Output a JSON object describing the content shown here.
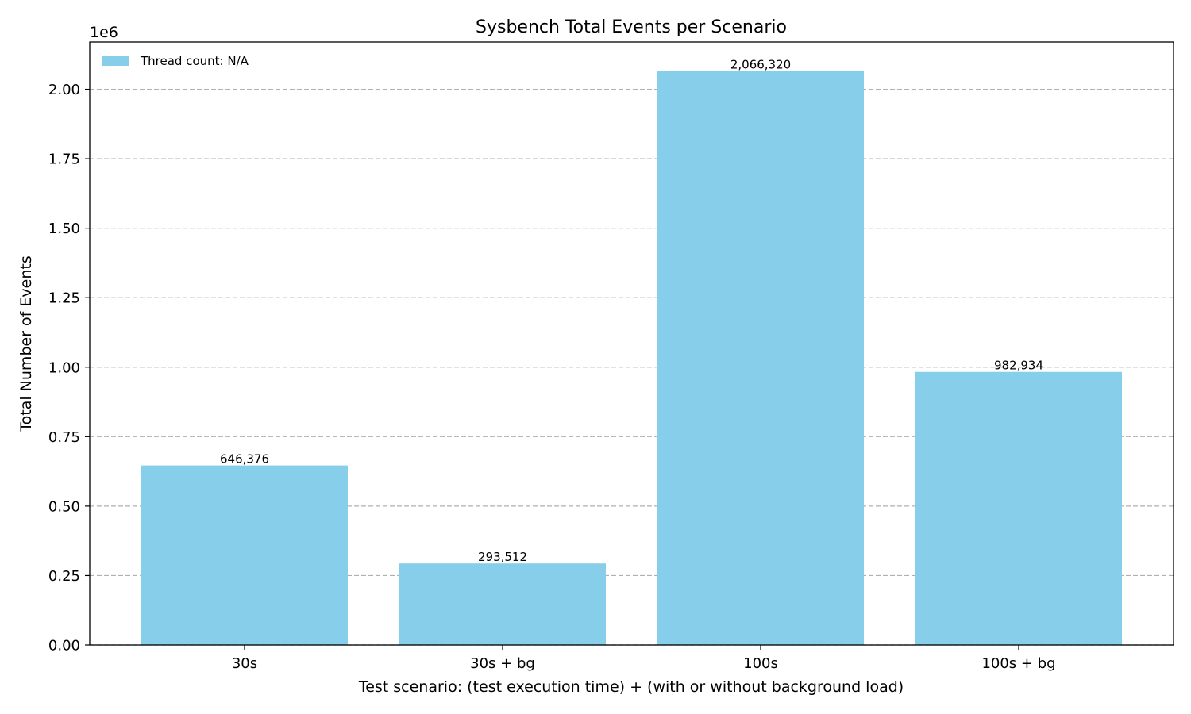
{
  "chart_data": {
    "type": "bar",
    "title": "Sysbench Total Events per Scenario",
    "xlabel": "Test scenario: (test execution time) + (with or without background load)",
    "ylabel": "Total Number of Events",
    "y_offset_label": "1e6",
    "categories": [
      "30s",
      "30s + bg",
      "100s",
      "100s + bg"
    ],
    "values": [
      646376,
      293512,
      2066320,
      982934
    ],
    "value_labels": [
      "646,376",
      "293,512",
      "2,066,320",
      "982,934"
    ],
    "ylim": [
      0,
      2170000
    ],
    "yticks": [
      0,
      250000,
      500000,
      750000,
      1000000,
      1250000,
      1500000,
      1750000,
      2000000
    ],
    "ytick_labels": [
      "0.00",
      "0.25",
      "0.50",
      "0.75",
      "1.00",
      "1.25",
      "1.50",
      "1.75",
      "2.00"
    ],
    "grid": "y-dashed",
    "legend": {
      "placement": "upper-left",
      "entries": [
        {
          "label": "Thread count: N/A",
          "color": "#87ceeb"
        }
      ]
    },
    "bar_color": "#87ceeb"
  }
}
